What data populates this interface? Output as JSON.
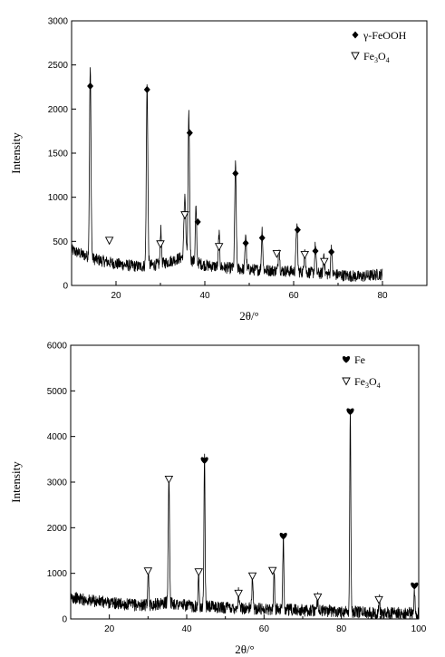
{
  "chart_data": [
    {
      "type": "line",
      "xlabel": "2θ/°",
      "ylabel": "Intensity",
      "xlim": [
        10,
        90
      ],
      "ylim": [
        0,
        3000
      ],
      "xticks": [
        20,
        40,
        60,
        80
      ],
      "yticks": [
        0,
        500,
        1000,
        1500,
        2000,
        2500,
        3000
      ],
      "grid": false,
      "legend_position": "top-right",
      "legend": [
        {
          "symbol": "diamond",
          "label": "γ-FeOOH"
        },
        {
          "symbol": "triangle-down",
          "label": "Fe3O4",
          "base": "Fe",
          "sub1": "3",
          "mid": "O",
          "sub2": "4"
        }
      ],
      "data_range": [
        10,
        80
      ],
      "baseline": [
        {
          "x": 10,
          "y": 400
        },
        {
          "x": 12,
          "y": 360
        },
        {
          "x": 15,
          "y": 300
        },
        {
          "x": 20,
          "y": 245
        },
        {
          "x": 25,
          "y": 215
        },
        {
          "x": 30,
          "y": 240
        },
        {
          "x": 35,
          "y": 320
        },
        {
          "x": 40,
          "y": 230
        },
        {
          "x": 45,
          "y": 200
        },
        {
          "x": 50,
          "y": 180
        },
        {
          "x": 60,
          "y": 160
        },
        {
          "x": 70,
          "y": 120
        },
        {
          "x": 75,
          "y": 100
        },
        {
          "x": 80,
          "y": 130
        }
      ],
      "peaks": [
        {
          "x": 14.2,
          "y": 2150,
          "w": 0.35
        },
        {
          "x": 27.0,
          "y": 2050,
          "w": 0.35
        },
        {
          "x": 30.1,
          "y": 420,
          "w": 0.3
        },
        {
          "x": 35.5,
          "y": 720,
          "w": 0.4
        },
        {
          "x": 36.4,
          "y": 1630,
          "w": 0.35
        },
        {
          "x": 38.0,
          "y": 620,
          "w": 0.3
        },
        {
          "x": 43.2,
          "y": 380,
          "w": 0.3
        },
        {
          "x": 46.9,
          "y": 1170,
          "w": 0.35
        },
        {
          "x": 49.2,
          "y": 410,
          "w": 0.3
        },
        {
          "x": 52.9,
          "y": 460,
          "w": 0.3
        },
        {
          "x": 56.7,
          "y": 300,
          "w": 0.3
        },
        {
          "x": 60.7,
          "y": 540,
          "w": 0.35
        },
        {
          "x": 62.5,
          "y": 300,
          "w": 0.3
        },
        {
          "x": 64.9,
          "y": 320,
          "w": 0.3
        },
        {
          "x": 66.8,
          "y": 230,
          "w": 0.3
        },
        {
          "x": 68.5,
          "y": 320,
          "w": 0.3
        }
      ],
      "markers": [
        {
          "symbol": "diamond",
          "x": 14.2,
          "y": 2260
        },
        {
          "symbol": "diamond",
          "x": 27.0,
          "y": 2220
        },
        {
          "symbol": "diamond",
          "x": 36.6,
          "y": 1730
        },
        {
          "symbol": "diamond",
          "x": 38.4,
          "y": 720
        },
        {
          "symbol": "diamond",
          "x": 46.9,
          "y": 1270
        },
        {
          "symbol": "diamond",
          "x": 49.2,
          "y": 480
        },
        {
          "symbol": "diamond",
          "x": 52.9,
          "y": 540
        },
        {
          "symbol": "diamond",
          "x": 60.9,
          "y": 630
        },
        {
          "symbol": "diamond",
          "x": 64.9,
          "y": 390
        },
        {
          "symbol": "diamond",
          "x": 68.5,
          "y": 380
        },
        {
          "symbol": "triangle-down",
          "x": 18.5,
          "y": 510
        },
        {
          "symbol": "triangle-down",
          "x": 30.0,
          "y": 470
        },
        {
          "symbol": "triangle-down",
          "x": 35.5,
          "y": 800
        },
        {
          "symbol": "triangle-down",
          "x": 43.2,
          "y": 440
        },
        {
          "symbol": "triangle-down",
          "x": 56.2,
          "y": 360
        },
        {
          "symbol": "triangle-down",
          "x": 62.5,
          "y": 350
        },
        {
          "symbol": "triangle-down",
          "x": 66.9,
          "y": 270
        }
      ]
    },
    {
      "type": "line",
      "xlabel": "2θ/°",
      "ylabel": "Intensity",
      "xlim": [
        10,
        100
      ],
      "ylim": [
        0,
        6000
      ],
      "xticks": [
        20,
        40,
        60,
        80,
        100
      ],
      "yticks": [
        0,
        1000,
        2000,
        3000,
        4000,
        5000,
        6000
      ],
      "grid": false,
      "legend_position": "top-right",
      "legend": [
        {
          "symbol": "heart",
          "label": "Fe"
        },
        {
          "symbol": "triangle-down",
          "label": "Fe3O4",
          "base": "Fe",
          "sub1": "3",
          "mid": "O",
          "sub2": "4"
        }
      ],
      "data_range": [
        10,
        100
      ],
      "baseline": [
        {
          "x": 10,
          "y": 480
        },
        {
          "x": 15,
          "y": 400
        },
        {
          "x": 20,
          "y": 360
        },
        {
          "x": 25,
          "y": 310
        },
        {
          "x": 30,
          "y": 300
        },
        {
          "x": 35,
          "y": 360
        },
        {
          "x": 40,
          "y": 290
        },
        {
          "x": 45,
          "y": 270
        },
        {
          "x": 50,
          "y": 250
        },
        {
          "x": 60,
          "y": 220
        },
        {
          "x": 70,
          "y": 190
        },
        {
          "x": 80,
          "y": 170
        },
        {
          "x": 90,
          "y": 130
        },
        {
          "x": 100,
          "y": 120
        }
      ],
      "peaks": [
        {
          "x": 30.1,
          "y": 750,
          "w": 0.3
        },
        {
          "x": 35.4,
          "y": 2800,
          "w": 0.35
        },
        {
          "x": 43.1,
          "y": 700,
          "w": 0.3
        },
        {
          "x": 44.6,
          "y": 3300,
          "w": 0.3
        },
        {
          "x": 53.4,
          "y": 360,
          "w": 0.3
        },
        {
          "x": 57.0,
          "y": 720,
          "w": 0.3
        },
        {
          "x": 62.6,
          "y": 820,
          "w": 0.3
        },
        {
          "x": 65.0,
          "y": 1600,
          "w": 0.3
        },
        {
          "x": 73.9,
          "y": 300,
          "w": 0.3
        },
        {
          "x": 82.3,
          "y": 4350,
          "w": 0.3
        },
        {
          "x": 89.8,
          "y": 300,
          "w": 0.3
        },
        {
          "x": 98.9,
          "y": 500,
          "w": 0.3
        }
      ],
      "markers": [
        {
          "symbol": "heart",
          "x": 44.6,
          "y": 3480
        },
        {
          "symbol": "heart",
          "x": 65.0,
          "y": 1820
        },
        {
          "symbol": "heart",
          "x": 82.3,
          "y": 4550
        },
        {
          "symbol": "heart",
          "x": 98.9,
          "y": 730
        },
        {
          "symbol": "triangle-down",
          "x": 30.0,
          "y": 1050
        },
        {
          "symbol": "triangle-down",
          "x": 35.4,
          "y": 3060
        },
        {
          "symbol": "triangle-down",
          "x": 43.1,
          "y": 1030
        },
        {
          "symbol": "triangle-down",
          "x": 53.4,
          "y": 560
        },
        {
          "symbol": "triangle-down",
          "x": 57.0,
          "y": 940
        },
        {
          "symbol": "triangle-down",
          "x": 62.2,
          "y": 1060
        },
        {
          "symbol": "triangle-down",
          "x": 73.9,
          "y": 480
        },
        {
          "symbol": "triangle-down",
          "x": 89.7,
          "y": 420
        }
      ]
    }
  ]
}
